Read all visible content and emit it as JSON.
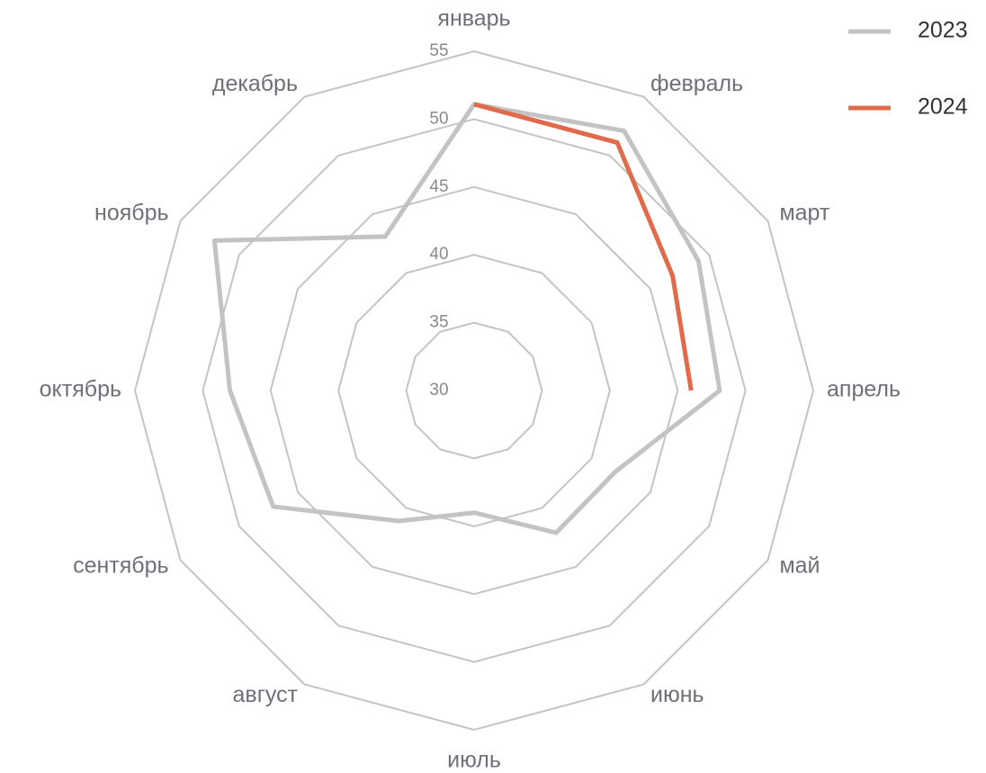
{
  "chart_data": {
    "type": "radar",
    "categories": [
      "январь",
      "февраль",
      "март",
      "апрель",
      "май",
      "июнь",
      "июль",
      "август",
      "сентябрь",
      "октябрь",
      "ноябрь",
      "декабрь"
    ],
    "series": [
      {
        "name": "2023",
        "color": "#c3c3c3",
        "values": [
          51.1,
          52.1,
          49.1,
          48.1,
          42.0,
          42.1,
          39.0,
          41.1,
          47.1,
          48.0,
          52.1,
          43.1
        ]
      },
      {
        "name": "2024",
        "color": "#e06a4a",
        "values": [
          51.1,
          51.1,
          46.9,
          46.0,
          null,
          null,
          null,
          null,
          null,
          null,
          null,
          null
        ]
      }
    ],
    "rlim": [
      30,
      55
    ],
    "rticks": [
      30,
      35,
      40,
      45,
      50,
      55
    ],
    "grid": true,
    "legend": "upper right"
  }
}
